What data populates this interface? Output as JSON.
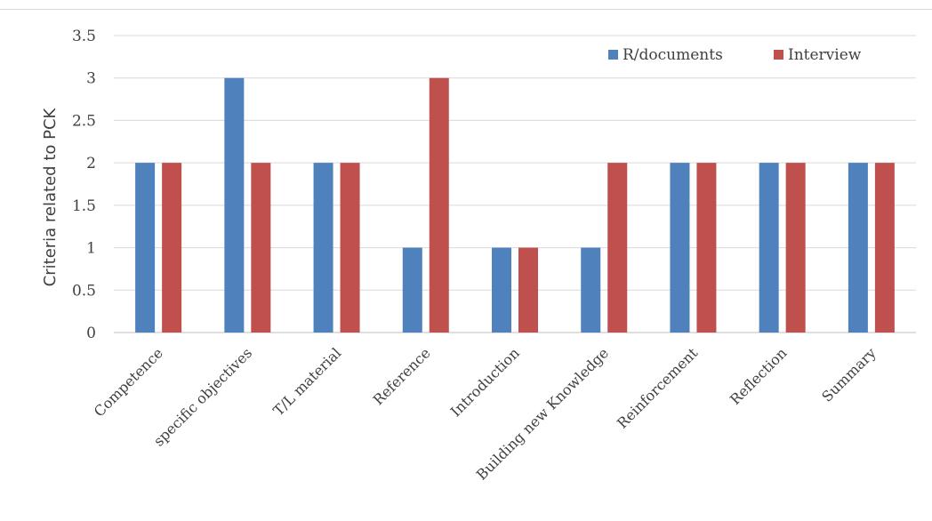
{
  "chart_data": {
    "type": "bar",
    "title": "",
    "xlabel": "",
    "ylabel": "Criteria related to PCK",
    "ylim": [
      0,
      3.5
    ],
    "yticks": [
      0,
      0.5,
      1,
      1.5,
      2,
      2.5,
      3,
      3.5
    ],
    "ytick_labels": [
      "0",
      "0.5",
      "1",
      "1.5",
      "2",
      "2.5",
      "3",
      "3.5"
    ],
    "grid": true,
    "legend_position": "top-right",
    "categories": [
      "Competence",
      "specific objectives",
      "T/L material",
      "Reference",
      "Introduction",
      "Building new Knowledge",
      "Reinforcement",
      "Reflection",
      "Summary"
    ],
    "series": [
      {
        "name": "R/documents",
        "color": "#4f81bd",
        "values": [
          2,
          3,
          2,
          1,
          1,
          1,
          2,
          2,
          2
        ]
      },
      {
        "name": "Interview",
        "color": "#c0504d",
        "values": [
          2,
          2,
          2,
          3,
          1,
          2,
          2,
          2,
          2
        ]
      }
    ]
  }
}
